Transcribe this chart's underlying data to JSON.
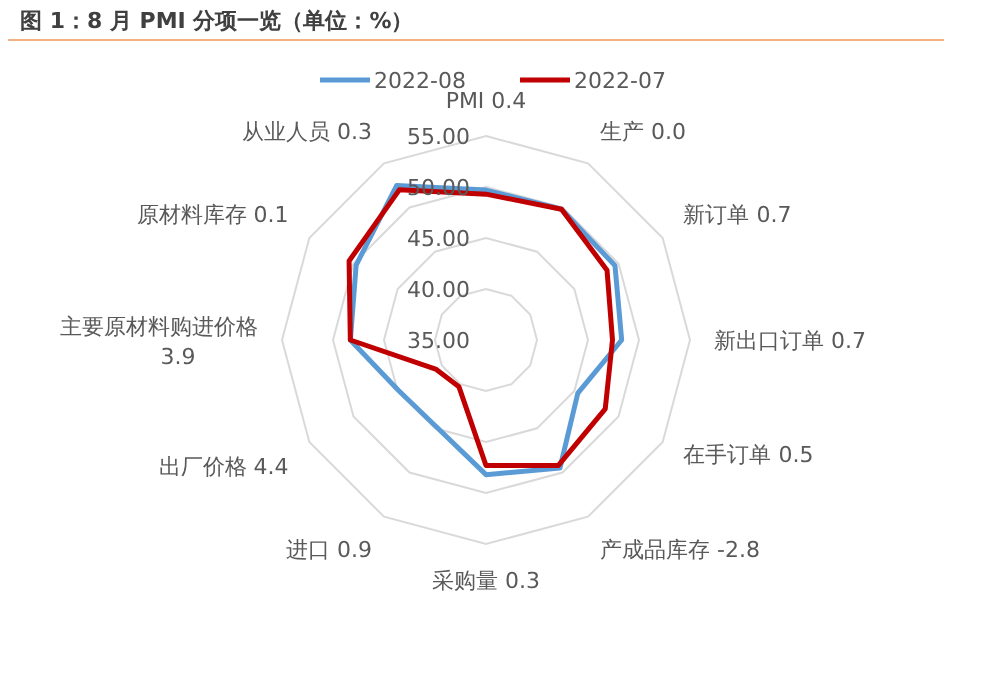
{
  "chart_data": {
    "type": "radar",
    "title": "图 1：8 月 PMI 分项一览（单位：%）",
    "categories": [
      "PMI 0.4",
      "生产 0.0",
      "新订单 0.7",
      "新出口订单 0.7",
      "在手订单 0.5",
      "产成品库存 -2.8",
      "采购量 0.3",
      "进口 0.9",
      "出厂价格 4.4",
      "主要原材料购进价格 3.9",
      "原材料库存 0.1",
      "从业人员 0.3"
    ],
    "series": [
      {
        "name": "2022-08",
        "color": "#5b9bd5",
        "values": [
          49.7,
          49.8,
          49.6,
          48.3,
          45.4,
          49.5,
          48.2,
          44.8,
          44.9,
          48.3,
          49.7,
          52.5
        ]
      },
      {
        "name": "2022-07",
        "color": "#c00000",
        "values": [
          49.3,
          49.8,
          48.7,
          47.4,
          48.5,
          49.2,
          47.3,
          40.3,
          40.7,
          48.3,
          50.5,
          52.0
        ]
      }
    ],
    "ylim": [
      35,
      55
    ],
    "yticks": [
      {
        "value": 35,
        "label": "35.00"
      },
      {
        "value": 40,
        "label": "40.00"
      },
      {
        "value": 45,
        "label": "45.00"
      },
      {
        "value": 50,
        "label": "50.00"
      },
      {
        "value": 55,
        "label": "55.00"
      }
    ],
    "grid": true,
    "legend": "top"
  }
}
